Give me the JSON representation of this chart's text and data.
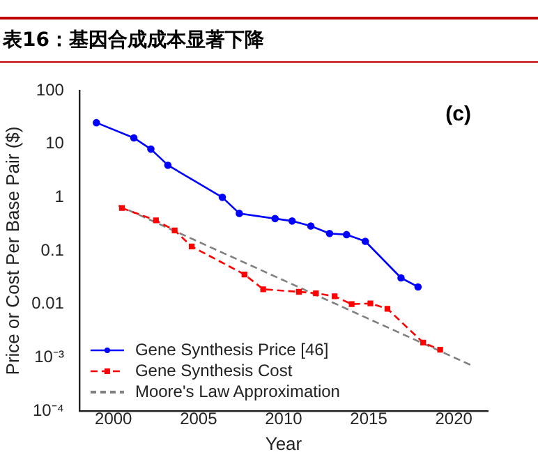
{
  "chart_data": {
    "type": "line",
    "title": "表16：基因合成成本显著下降",
    "xlabel": "Year",
    "ylabel": "Price or Cost Per Base Pair ($)",
    "annotations": [
      "(c)"
    ],
    "series": [
      {
        "name": "Gene Synthesis Price [46]",
        "color": "#0000ff",
        "marker": "circle",
        "line_style": "solid",
        "x": [
          1999,
          2001.2,
          2002.2,
          2003.2,
          2006.4,
          2007.4,
          2009.5,
          2010.5,
          2011.6,
          2012.7,
          2013.7,
          2014.8,
          2016.9,
          2017.9
        ],
        "values": [
          25,
          13,
          8,
          4,
          1,
          0.5,
          0.4,
          0.36,
          0.29,
          0.21,
          0.2,
          0.15,
          0.031,
          0.021
        ]
      },
      {
        "name": "Gene Synthesis Cost",
        "color": "#ff0000",
        "marker": "square",
        "line_style": "dashed",
        "x": [
          2000.5,
          2002.5,
          2003.6,
          2004.6,
          2007.7,
          2008.8,
          2010.9,
          2011.9,
          2013,
          2014,
          2015.1,
          2016.1,
          2018.2,
          2019.2
        ],
        "values": [
          0.63,
          0.37,
          0.24,
          0.12,
          0.036,
          0.019,
          0.017,
          0.016,
          0.014,
          0.01,
          0.0103,
          0.0082,
          0.0019,
          0.0014
        ]
      },
      {
        "name": "Moore's Law Approximation",
        "color": "#808080",
        "marker": "none",
        "line_style": "dashed",
        "x": [
          2000.3,
          2021.1
        ],
        "values": [
          0.7,
          0.0007
        ]
      }
    ],
    "xlim": [
      1998,
      2022
    ],
    "xticks": [
      2000,
      2005,
      2010,
      2015,
      2020
    ],
    "log": "y",
    "ylim": [
      0.0001,
      100
    ],
    "yticks": [
      100,
      10,
      1,
      0.1,
      0.01,
      {
        "value": 0.001,
        "label": "10⁻³"
      },
      {
        "value": 0.0001,
        "label": "10⁻⁴"
      }
    ],
    "grid": false,
    "legend": "bottom left"
  }
}
